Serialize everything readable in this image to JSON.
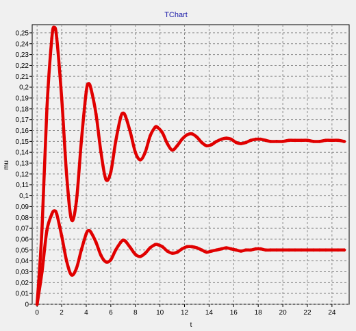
{
  "chart_data": {
    "type": "line",
    "title": "TChart",
    "xlabel": "t",
    "ylabel": "mu",
    "xlim": [
      -0.4,
      25.4
    ],
    "ylim": [
      0,
      0.255
    ],
    "grid": true,
    "x_ticks": [
      0,
      2,
      4,
      6,
      8,
      10,
      12,
      14,
      16,
      18,
      20,
      22,
      24
    ],
    "y_ticks": [
      0,
      0.01,
      0.02,
      0.03,
      0.04,
      0.05,
      0.06,
      0.07,
      0.08,
      0.09,
      0.1,
      0.11,
      0.12,
      0.13,
      0.14,
      0.15,
      0.16,
      0.17,
      0.18,
      0.19,
      0.2,
      0.21,
      0.22,
      0.23,
      0.24,
      0.25
    ],
    "y_tick_labels": [
      "0",
      "0,01",
      "0,02",
      "0,03",
      "0,04",
      "0,05",
      "0,06",
      "0,07",
      "0,08",
      "0,09",
      "0,1",
      "0,11",
      "0,12",
      "0,13",
      "0,14",
      "0,15",
      "0,16",
      "0,17",
      "0,18",
      "0,19",
      "0,2",
      "0,21",
      "0,22",
      "0,23",
      "0,24",
      "0,25"
    ],
    "series": [
      {
        "color": "#e00000",
        "x": [
          0,
          0.4,
          0.8,
          1.2,
          1.4,
          1.6,
          2.0,
          2.4,
          2.8,
          3.2,
          3.6,
          4.0,
          4.2,
          4.4,
          4.8,
          5.2,
          5.6,
          6.0,
          6.4,
          6.8,
          7.0,
          7.2,
          7.6,
          8.0,
          8.4,
          8.8,
          9.2,
          9.6,
          9.8,
          10.2,
          10.6,
          11.0,
          11.4,
          11.8,
          12.2,
          12.6,
          13.0,
          13.4,
          13.8,
          14.2,
          14.6,
          15.0,
          15.4,
          15.8,
          16.2,
          16.6,
          17.0,
          17.4,
          17.8,
          18.2,
          18.6,
          19.0,
          19.5,
          20.0,
          20.5,
          21.0,
          21.5,
          22.0,
          22.5,
          23.0,
          23.5,
          24.0,
          24.5,
          25.0
        ],
        "y": [
          0.0,
          0.07,
          0.18,
          0.245,
          0.255,
          0.245,
          0.19,
          0.12,
          0.078,
          0.095,
          0.15,
          0.196,
          0.203,
          0.198,
          0.175,
          0.14,
          0.115,
          0.122,
          0.15,
          0.172,
          0.176,
          0.173,
          0.158,
          0.14,
          0.133,
          0.14,
          0.155,
          0.163,
          0.163,
          0.158,
          0.148,
          0.142,
          0.146,
          0.152,
          0.156,
          0.157,
          0.154,
          0.149,
          0.146,
          0.147,
          0.15,
          0.152,
          0.153,
          0.152,
          0.149,
          0.148,
          0.149,
          0.151,
          0.152,
          0.152,
          0.151,
          0.15,
          0.15,
          0.15,
          0.151,
          0.151,
          0.151,
          0.151,
          0.15,
          0.15,
          0.151,
          0.151,
          0.151,
          0.15
        ]
      },
      {
        "color": "#e00000",
        "x": [
          0,
          0.4,
          0.8,
          1.2,
          1.4,
          1.6,
          2.0,
          2.4,
          2.8,
          3.2,
          3.6,
          4.0,
          4.2,
          4.4,
          4.8,
          5.2,
          5.6,
          6.0,
          6.4,
          6.8,
          7.0,
          7.2,
          7.6,
          8.0,
          8.4,
          8.8,
          9.2,
          9.6,
          9.8,
          10.2,
          10.6,
          11.0,
          11.4,
          11.8,
          12.2,
          12.6,
          13.0,
          13.4,
          13.8,
          14.2,
          14.6,
          15.0,
          15.4,
          15.8,
          16.2,
          16.6,
          17.0,
          17.4,
          17.8,
          18.2,
          18.6,
          19.0,
          19.5,
          20.0,
          20.5,
          21.0,
          21.5,
          22.0,
          22.5,
          23.0,
          23.5,
          24.0,
          24.5,
          25.0
        ],
        "y": [
          0.0,
          0.03,
          0.068,
          0.083,
          0.086,
          0.083,
          0.063,
          0.04,
          0.027,
          0.033,
          0.05,
          0.065,
          0.068,
          0.066,
          0.057,
          0.045,
          0.039,
          0.041,
          0.05,
          0.057,
          0.059,
          0.058,
          0.052,
          0.046,
          0.044,
          0.047,
          0.052,
          0.055,
          0.055,
          0.053,
          0.049,
          0.047,
          0.048,
          0.051,
          0.053,
          0.053,
          0.052,
          0.05,
          0.048,
          0.049,
          0.05,
          0.051,
          0.052,
          0.051,
          0.05,
          0.049,
          0.05,
          0.05,
          0.051,
          0.051,
          0.05,
          0.05,
          0.05,
          0.05,
          0.05,
          0.05,
          0.05,
          0.05,
          0.05,
          0.05,
          0.05,
          0.05,
          0.05,
          0.05
        ]
      }
    ]
  }
}
